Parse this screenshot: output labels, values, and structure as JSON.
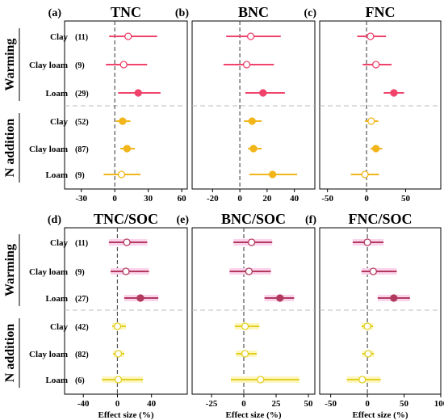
{
  "figure": {
    "groups": [
      {
        "label": "Warming",
        "rows": [
          0,
          1,
          2
        ]
      },
      {
        "label": "N addition",
        "rows": [
          3,
          4,
          5
        ]
      }
    ],
    "colors": {
      "warming_top": "#f0436b",
      "naddition_top": "#f2b51a",
      "warming_bottom": "#b23a5f",
      "naddition_bottom": "#e3cf20",
      "ci_band_bottom_warming": "#fbd3ea",
      "ci_band_bottom_naddition": "#fcf6c0",
      "zero_line": "#555555",
      "divider": "#bbbbbb"
    },
    "row_labels_top": [
      {
        "soil": "Clay",
        "n": "(11)"
      },
      {
        "soil": "Clay loam",
        "n": "(9)"
      },
      {
        "soil": "Loam",
        "n": "(29)"
      },
      {
        "soil": "Clay",
        "n": "(52)"
      },
      {
        "soil": "Clay loam",
        "n": "(87)"
      },
      {
        "soil": "Loam",
        "n": "(9)"
      }
    ],
    "row_labels_bottom": [
      {
        "soil": "Clay",
        "n": "(11)"
      },
      {
        "soil": "Clay loam",
        "n": "(9)"
      },
      {
        "soil": "Loam",
        "n": "(27)"
      },
      {
        "soil": "Clay",
        "n": "(42)"
      },
      {
        "soil": "Clay loam",
        "n": "(82)"
      },
      {
        "soil": "Loam",
        "n": "(6)"
      }
    ],
    "xlabel": "Effect size (%)"
  },
  "chart_data": [
    {
      "type": "forest",
      "panel": "(a)",
      "title": "TNC",
      "xlim": [
        -45,
        65
      ],
      "xticks": [
        -30,
        0,
        30,
        60
      ],
      "points": [
        {
          "mean": 12,
          "low": -5,
          "high": 38,
          "significant": false
        },
        {
          "mean": 8,
          "low": -8,
          "high": 29,
          "significant": false
        },
        {
          "mean": 21,
          "low": 3,
          "high": 41,
          "significant": true
        },
        {
          "mean": 7,
          "low": 1,
          "high": 14,
          "significant": true
        },
        {
          "mean": 11,
          "low": 5,
          "high": 18,
          "significant": true
        },
        {
          "mean": 6,
          "low": -10,
          "high": 23,
          "significant": false
        }
      ]
    },
    {
      "type": "forest",
      "panel": "(b)",
      "title": "BNC",
      "xlim": [
        -35,
        55
      ],
      "xticks": [
        -20,
        0,
        20,
        40
      ],
      "points": [
        {
          "mean": 8,
          "low": -10,
          "high": 30,
          "significant": false
        },
        {
          "mean": 5,
          "low": -12,
          "high": 25,
          "significant": false
        },
        {
          "mean": 17,
          "low": 4,
          "high": 33,
          "significant": true
        },
        {
          "mean": 9,
          "low": 3,
          "high": 16,
          "significant": true
        },
        {
          "mean": 10,
          "low": 6,
          "high": 16,
          "significant": true
        },
        {
          "mean": 24,
          "low": 7,
          "high": 42,
          "significant": true
        }
      ]
    },
    {
      "type": "forest",
      "panel": "(c)",
      "title": "FNC",
      "xlim": [
        -60,
        95
      ],
      "xticks": [
        -50,
        0,
        50
      ],
      "points": [
        {
          "mean": 5,
          "low": -12,
          "high": 25,
          "significant": false
        },
        {
          "mean": 12,
          "low": -5,
          "high": 32,
          "significant": false
        },
        {
          "mean": 35,
          "low": 22,
          "high": 48,
          "significant": true
        },
        {
          "mean": 6,
          "low": -2,
          "high": 15,
          "significant": false
        },
        {
          "mean": 12,
          "low": 5,
          "high": 20,
          "significant": true
        },
        {
          "mean": -2,
          "low": -20,
          "high": 16,
          "significant": false
        }
      ]
    },
    {
      "type": "forest",
      "panel": "(d)",
      "title": "TNC/SOC",
      "xlim": [
        -62,
        82
      ],
      "xticks": [
        -40,
        0,
        40
      ],
      "points": [
        {
          "mean": 11,
          "low": -10,
          "high": 35,
          "significant": false
        },
        {
          "mean": 10,
          "low": -8,
          "high": 37,
          "significant": false
        },
        {
          "mean": 27,
          "low": 8,
          "high": 48,
          "significant": true
        },
        {
          "mean": 0,
          "low": -6,
          "high": 10,
          "significant": false
        },
        {
          "mean": 1,
          "low": -5,
          "high": 8,
          "significant": false
        },
        {
          "mean": 1,
          "low": -18,
          "high": 30,
          "significant": false
        }
      ]
    },
    {
      "type": "forest",
      "panel": "(e)",
      "title": "BNC/SOC",
      "xlim": [
        -40,
        55
      ],
      "xticks": [
        -25,
        0,
        25,
        50
      ],
      "points": [
        {
          "mean": 6,
          "low": -8,
          "high": 22,
          "significant": false
        },
        {
          "mean": 4,
          "low": -11,
          "high": 21,
          "significant": false
        },
        {
          "mean": 28,
          "low": 16,
          "high": 39,
          "significant": true
        },
        {
          "mean": 1,
          "low": -7,
          "high": 12,
          "significant": false
        },
        {
          "mean": 1,
          "low": -6,
          "high": 10,
          "significant": false
        },
        {
          "mean": 13,
          "low": -10,
          "high": 43,
          "significant": false
        }
      ]
    },
    {
      "type": "forest",
      "panel": "(f)",
      "title": "FNC/SOC",
      "xlim": [
        -65,
        100
      ],
      "xticks": [
        -50,
        0,
        50,
        100
      ],
      "points": [
        {
          "mean": 0,
          "low": -20,
          "high": 22,
          "significant": false
        },
        {
          "mean": 8,
          "low": -8,
          "high": 40,
          "significant": false
        },
        {
          "mean": 36,
          "low": 14,
          "high": 58,
          "significant": true
        },
        {
          "mean": 0,
          "low": -8,
          "high": 8,
          "significant": false
        },
        {
          "mean": 1,
          "low": -7,
          "high": 9,
          "significant": false
        },
        {
          "mean": -7,
          "low": -28,
          "high": 18,
          "significant": false
        }
      ]
    }
  ]
}
